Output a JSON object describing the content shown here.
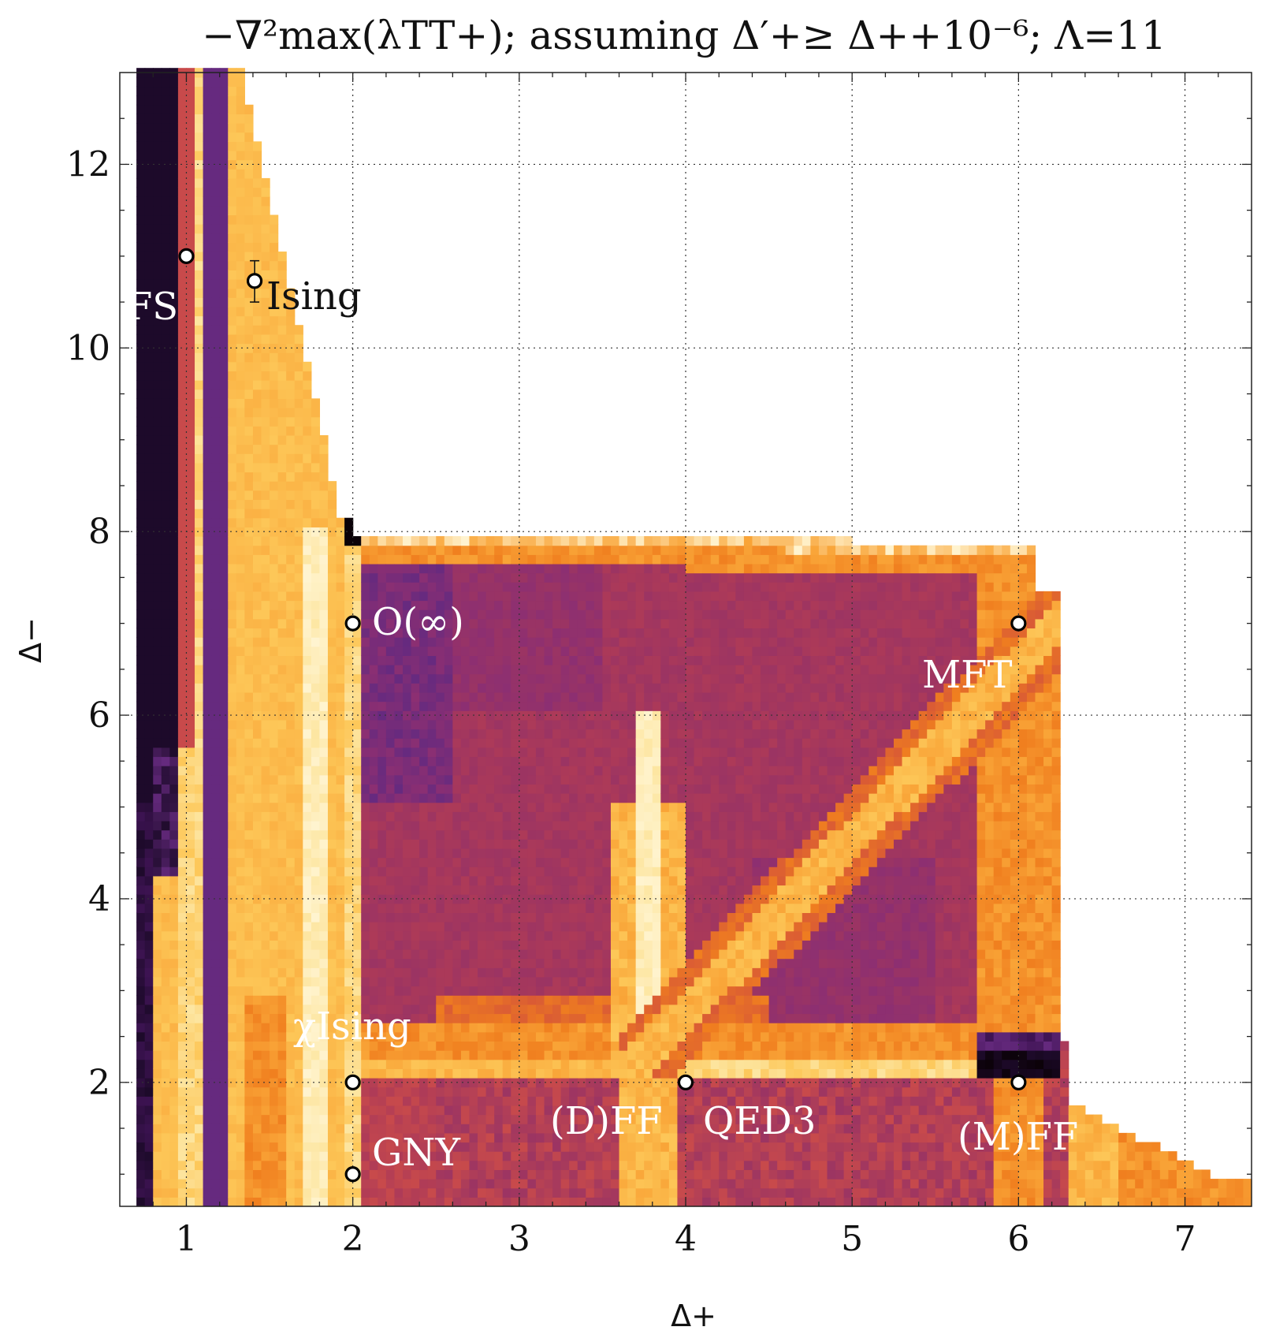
{
  "chart_data": {
    "type": "heatmap",
    "title": "−∇²max(λTT+); assuming Δ′+≥ Δ++10⁻⁶; Λ=11",
    "xlabel": "Δ+",
    "ylabel": "Δ−",
    "xlim": [
      0.6,
      7.4
    ],
    "ylim": [
      0.65,
      13.0
    ],
    "x_ticks": [
      1,
      2,
      3,
      4,
      5,
      6,
      7
    ],
    "y_ticks": [
      2,
      4,
      6,
      8,
      10,
      12
    ],
    "grid": true,
    "colors": {
      "darkest": "#1d0a2a",
      "dark_purple": "#3d1352",
      "purple": "#662a7f",
      "magenta": "#8c2f72",
      "plum": "#9b3463",
      "rose": "#ad3a58",
      "red": "#c84a4b",
      "red_orange": "#d95a35",
      "orange": "#f07f1f",
      "amber": "#f9a437",
      "yellow": "#fdc758",
      "pale": "#fde6a2",
      "cream": "#fff4d0",
      "black": "#0b0208"
    },
    "points": [
      {
        "x": 1.0,
        "y": 11.0,
        "label": "FS",
        "label_color": "white"
      },
      {
        "x": 1.41,
        "y": 10.73,
        "label": "Ising",
        "label_color": "black",
        "error_low": 10.5,
        "error_high": 10.95
      },
      {
        "x": 2.0,
        "y": 7.0,
        "label": "O(∞)",
        "label_color": "white"
      },
      {
        "x": 6.0,
        "y": 7.0,
        "label": "MFT",
        "label_color": "white"
      },
      {
        "x": 2.0,
        "y": 2.0,
        "label": "χIsing",
        "label_color": "white"
      },
      {
        "x": 2.0,
        "y": 1.0,
        "label": "GNY",
        "label_color": "white"
      },
      {
        "x": 4.0,
        "y": 2.0,
        "label": "QED3",
        "label_color": "white"
      },
      {
        "x": 6.0,
        "y": 2.0,
        "label": "(M)FF",
        "label_color": "white"
      }
    ],
    "extra_labels": [
      {
        "text": "(D)FF",
        "label_color": "white"
      }
    ]
  }
}
